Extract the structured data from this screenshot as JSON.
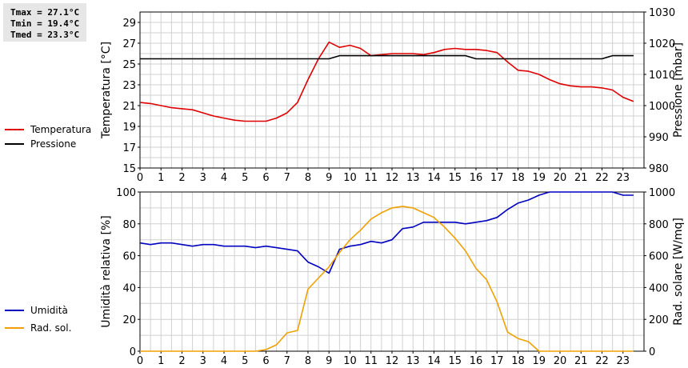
{
  "stats": {
    "tmax": "Tmax = 27.1°C",
    "tmin": "Tmin = 19.4°C",
    "tmed": "Tmed = 23.3°C"
  },
  "colors": {
    "temperature": "#e00000",
    "pressure": "#000000",
    "humidity": "#0000c0",
    "solar": "#f0a000",
    "grid": "#d0d0d0"
  },
  "chart_data": [
    {
      "type": "line",
      "x": [
        0,
        0.5,
        1,
        1.5,
        2,
        2.5,
        3,
        3.5,
        4,
        4.5,
        5,
        5.5,
        6,
        6.5,
        7,
        7.5,
        8,
        8.5,
        9,
        9.5,
        10,
        10.5,
        11,
        11.5,
        12,
        12.5,
        13,
        13.5,
        14,
        14.5,
        15,
        15.5,
        16,
        16.5,
        17,
        17.5,
        18,
        18.5,
        19,
        19.5,
        20,
        20.5,
        21,
        21.5,
        22,
        22.5,
        23,
        23.5
      ],
      "xlim": [
        0,
        24
      ],
      "xticks": [
        "0",
        "1",
        "2",
        "3",
        "4",
        "5",
        "6",
        "7",
        "8",
        "9",
        "10",
        "11",
        "12",
        "13",
        "14",
        "15",
        "16",
        "17",
        "18",
        "19",
        "20",
        "21",
        "22",
        "23"
      ],
      "ylabel": "Temperatura [°C]",
      "y2label": "Pressione [mbar]",
      "ylim": [
        15,
        30
      ],
      "y2lim": [
        980,
        1030
      ],
      "yticks": [
        "15",
        "17",
        "19",
        "21",
        "23",
        "25",
        "27",
        "29"
      ],
      "y2ticks": [
        "980",
        "990",
        "1000",
        "1010",
        "1020",
        "1030"
      ],
      "grid": true,
      "legend_position": "left",
      "series": [
        {
          "name": "Temperatura",
          "axis": "left",
          "values": [
            21.3,
            21.2,
            21.0,
            20.8,
            20.7,
            20.6,
            20.3,
            20.0,
            19.8,
            19.6,
            19.5,
            19.5,
            19.5,
            19.8,
            20.3,
            21.3,
            23.5,
            25.5,
            27.1,
            26.6,
            26.8,
            26.5,
            25.8,
            25.9,
            26.0,
            26.0,
            26.0,
            25.9,
            26.1,
            26.4,
            26.5,
            26.4,
            26.4,
            26.3,
            26.1,
            25.2,
            24.4,
            24.3,
            24.0,
            23.5,
            23.1,
            22.9,
            22.8,
            22.8,
            22.7,
            22.5,
            21.8,
            21.4
          ]
        },
        {
          "name": "Pressione",
          "axis": "right",
          "values": [
            1015,
            1015,
            1015,
            1015,
            1015,
            1015,
            1015,
            1015,
            1015,
            1015,
            1015,
            1015,
            1015,
            1015,
            1015,
            1015,
            1015,
            1015,
            1015,
            1016,
            1016,
            1016,
            1016,
            1016,
            1016,
            1016,
            1016,
            1016,
            1016,
            1016,
            1016,
            1016,
            1015,
            1015,
            1015,
            1015,
            1015,
            1015,
            1015,
            1015,
            1015,
            1015,
            1015,
            1015,
            1015,
            1016,
            1016,
            1016
          ]
        }
      ]
    },
    {
      "type": "line",
      "x": [
        0,
        0.5,
        1,
        1.5,
        2,
        2.5,
        3,
        3.5,
        4,
        4.5,
        5,
        5.5,
        6,
        6.5,
        7,
        7.5,
        8,
        8.5,
        9,
        9.5,
        10,
        10.5,
        11,
        11.5,
        12,
        12.5,
        13,
        13.5,
        14,
        14.5,
        15,
        15.5,
        16,
        16.5,
        17,
        17.5,
        18,
        18.5,
        19,
        19.5,
        20,
        20.5,
        21,
        21.5,
        22,
        22.5,
        23,
        23.5
      ],
      "xlim": [
        0,
        24
      ],
      "xticks": [
        "0",
        "1",
        "2",
        "3",
        "4",
        "5",
        "6",
        "7",
        "8",
        "9",
        "10",
        "11",
        "12",
        "13",
        "14",
        "15",
        "16",
        "17",
        "18",
        "19",
        "20",
        "21",
        "22",
        "23"
      ],
      "ylabel": "Umidità relativa [%]",
      "y2label": "Rad. solare [W/mq]",
      "ylim": [
        0,
        100
      ],
      "y2lim": [
        0,
        1000
      ],
      "yticks": [
        "0",
        "20",
        "40",
        "60",
        "80",
        "100"
      ],
      "y2ticks": [
        "0",
        "200",
        "400",
        "600",
        "800",
        "1000"
      ],
      "grid": true,
      "legend_position": "left",
      "series": [
        {
          "name": "Umidità",
          "axis": "left",
          "values": [
            68,
            67,
            68,
            68,
            67,
            66,
            67,
            67,
            66,
            66,
            66,
            65,
            66,
            65,
            64,
            63,
            56,
            53,
            49,
            64,
            66,
            67,
            69,
            68,
            70,
            77,
            78,
            81,
            81,
            81,
            81,
            80,
            81,
            82,
            84,
            89,
            93,
            95,
            98,
            100,
            100,
            100,
            100,
            100,
            100,
            100,
            98,
            98
          ]
        },
        {
          "name": "Rad. sol.",
          "axis": "right",
          "values": [
            0,
            0,
            0,
            0,
            0,
            0,
            0,
            0,
            0,
            0,
            0,
            0,
            10,
            40,
            115,
            130,
            390,
            460,
            530,
            620,
            700,
            760,
            830,
            870,
            900,
            910,
            900,
            870,
            840,
            780,
            710,
            630,
            520,
            450,
            310,
            120,
            80,
            60,
            0,
            0,
            0,
            0,
            0,
            0,
            0,
            0,
            0,
            0
          ]
        }
      ]
    }
  ]
}
